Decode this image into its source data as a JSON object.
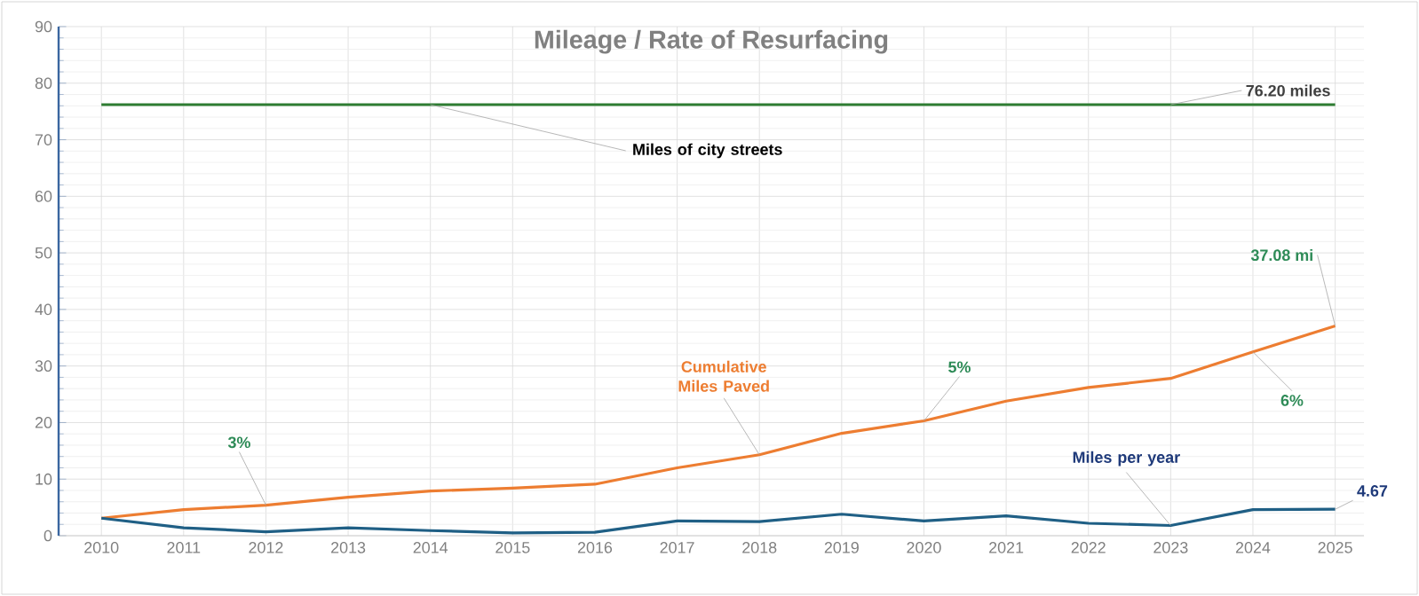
{
  "chart_data": {
    "type": "line",
    "title": "Mileage / Rate of Resurfacing",
    "categories": [
      "2010",
      "2011",
      "2012",
      "2013",
      "2014",
      "2015",
      "2016",
      "2017",
      "2018",
      "2019",
      "2020",
      "2021",
      "2022",
      "2023",
      "2024",
      "2025"
    ],
    "series": [
      {
        "name": "Miles of city streets",
        "color": "#2e7d32",
        "values": [
          76.2,
          76.2,
          76.2,
          76.2,
          76.2,
          76.2,
          76.2,
          76.2,
          76.2,
          76.2,
          76.2,
          76.2,
          76.2,
          76.2,
          76.2,
          76.2
        ]
      },
      {
        "name": "Cumulative Miles Paved",
        "color": "#ed7d31",
        "values": [
          3.1,
          4.6,
          5.4,
          6.8,
          7.9,
          8.4,
          9.1,
          12.0,
          14.3,
          18.1,
          20.3,
          23.8,
          26.2,
          27.8,
          32.5,
          37.08
        ]
      },
      {
        "name": "Miles per year",
        "color": "#1f5f85",
        "values": [
          3.1,
          1.4,
          0.7,
          1.4,
          0.9,
          0.5,
          0.6,
          2.6,
          2.5,
          3.8,
          2.6,
          3.5,
          2.2,
          1.8,
          4.6,
          4.67
        ]
      }
    ],
    "annotations": [
      {
        "text": "76.20 miles",
        "x": "2023",
        "y": 76.2
      },
      {
        "text": "37.08 mi",
        "x": "2025",
        "y": 37.08
      },
      {
        "text": "3%",
        "x": "2012",
        "y": 5.4
      },
      {
        "text": "5%",
        "x": "2020",
        "y": 20.3
      },
      {
        "text": "6%",
        "x": "2024",
        "y": 32.5
      },
      {
        "text": "4.67",
        "x": "2025",
        "y": 4.67
      }
    ],
    "ylim": [
      0,
      90
    ],
    "yticks": [
      0,
      10,
      20,
      30,
      40,
      50,
      60,
      70,
      80,
      90
    ],
    "grid": true,
    "marker": "none",
    "line_style": "solid"
  }
}
